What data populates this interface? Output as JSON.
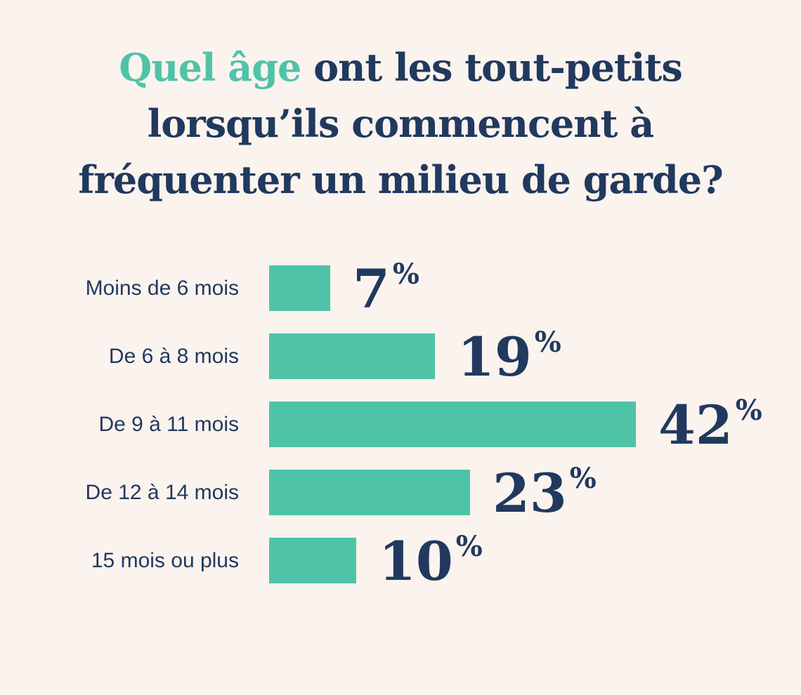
{
  "title": {
    "highlight": "Quel âge",
    "line1_rest": " ont les tout-petits",
    "line2": "lorsqu’ils commencent à",
    "line3": "fréquenter un milieu de garde?"
  },
  "chart_data": {
    "type": "bar",
    "orientation": "horizontal",
    "title": "Quel âge ont les tout-petits lorsqu’ils commencent à fréquenter un milieu de garde?",
    "categories": [
      "Moins de 6 mois",
      "De 6 à 8 mois",
      "De 9 à 11 mois",
      "De 12 à 14 mois",
      "15 mois ou plus"
    ],
    "values": [
      7,
      19,
      42,
      23,
      10
    ],
    "unit": "%",
    "value_labels": [
      "7 %",
      "19 %",
      "42 %",
      "23 %",
      "10 %"
    ],
    "xlim": [
      0,
      45
    ],
    "grid": false,
    "legend": "none",
    "colors": {
      "bar": "#4fc3a8",
      "text": "#21395e",
      "title_highlight": "#4fc3a8",
      "background": "#fbf3ee"
    }
  }
}
